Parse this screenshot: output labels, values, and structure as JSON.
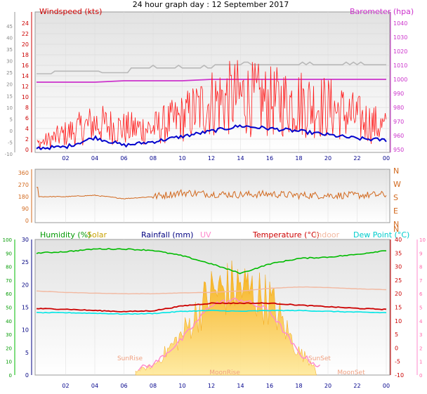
{
  "title": "24 hour graph day : 12 September 2017",
  "colors": {
    "windspeed": "#ff1a1a",
    "wind_avg": "#0000cc",
    "gust": "#b8b8b8",
    "barometer": "#cc33cc",
    "direction": "#d2691e",
    "humidity": "#00bb00",
    "solar": "#f5b800",
    "rainfall": "#000080",
    "uv": "#ff88cc",
    "temperature": "#cc0000",
    "indoor": "#f2b8a0",
    "dewpoint": "#00e6e6"
  },
  "panel1": {
    "left_title": "Windspeed (kts)",
    "right_title": "Barometer (hpa)",
    "outer_left_ticks": [
      "45",
      "40",
      "35",
      "30",
      "25",
      "20",
      "15",
      "10",
      "5",
      "0",
      "-5",
      "-10"
    ],
    "left_ticks": [
      "24",
      "22",
      "20",
      "18",
      "16",
      "14",
      "12",
      "10",
      "8",
      "6",
      "4",
      "2",
      "0"
    ],
    "right_ticks": [
      "1040",
      "1030",
      "1020",
      "1010",
      "1000",
      "990",
      "980",
      "970",
      "960",
      "950"
    ]
  },
  "panel2": {
    "left_ticks": [
      "360",
      "270",
      "180",
      "90",
      "0"
    ],
    "right_ticks": [
      "N",
      "W",
      "S",
      "E",
      "N"
    ]
  },
  "panel3": {
    "legend": [
      {
        "key": "humidity",
        "label": "Humidity (%)"
      },
      {
        "key": "solar",
        "label": "Solar"
      },
      {
        "key": "rainfall",
        "label": "Rainfall (mm)"
      },
      {
        "key": "uv",
        "label": "UV"
      },
      {
        "key": "temperature",
        "label": "Temperature (°C)"
      },
      {
        "key": "indoor",
        "label": "Indoor"
      },
      {
        "key": "dewpoint",
        "label": "Dew Point (°C)"
      }
    ],
    "outer_left_ticks": [
      "100",
      "90",
      "80",
      "70",
      "60",
      "50",
      "40",
      "30",
      "20",
      "10",
      "0"
    ],
    "left_ticks": [
      "30",
      "25",
      "20",
      "15",
      "10",
      "5",
      "0"
    ],
    "right_ticks": [
      "40",
      "35",
      "30",
      "25",
      "20",
      "15",
      "10",
      "5",
      "0",
      "-5",
      "-10"
    ],
    "outer_right_ticks": [
      "10",
      "9",
      "8",
      "7",
      "6",
      "5",
      "4",
      "3",
      "2",
      "1",
      "0"
    ],
    "events": [
      {
        "label": "SunRise",
        "hour": 6.8
      },
      {
        "label": "MoonRise",
        "hour": 14.2
      },
      {
        "label": "SunSet",
        "hour": 19.4
      },
      {
        "label": "MoonSet",
        "hour": 15.1
      }
    ],
    "x_labels": [
      "02",
      "04",
      "06",
      "08",
      "10",
      "12",
      "Moon",
      "Set",
      "14",
      "16",
      "18",
      "SunSet",
      "20",
      "22",
      "00"
    ],
    "x_labels_overlay": [
      "SunRise",
      "SunSet",
      "MoonSet",
      "MoonSet"
    ]
  },
  "x_ticks": [
    "02",
    "04",
    "06",
    "08",
    "10",
    "12",
    "14",
    "16",
    "18",
    "20",
    "22",
    "00"
  ],
  "chart_data": [
    {
      "type": "line",
      "title": "Windspeed (kts)",
      "x": [
        0,
        2,
        4,
        6,
        8,
        10,
        12,
        14,
        16,
        18,
        20,
        22,
        24
      ],
      "series": [
        {
          "name": "Windspeed (kts)",
          "axis": "left",
          "values": [
            1,
            3,
            5,
            4,
            4,
            6,
            9,
            10,
            9,
            9,
            8,
            6,
            4
          ]
        },
        {
          "name": "Barometer (hpa)",
          "axis": "right",
          "values": [
            998,
            998,
            998,
            999,
            999,
            999,
            1000,
            1000,
            1000,
            1000,
            1000,
            1000,
            1000
          ]
        }
      ],
      "ylim_left": [
        0,
        24
      ],
      "ylim_right": [
        950,
        1040
      ]
    },
    {
      "type": "line",
      "x": [
        0,
        2,
        4,
        6,
        8,
        10,
        12,
        14,
        16,
        18,
        20,
        22,
        24
      ],
      "series": [
        {
          "values": [
            180,
            180,
            190,
            165,
            180,
            210,
            200,
            195,
            200,
            190,
            190,
            190,
            195
          ]
        }
      ],
      "ylim": [
        0,
        360
      ]
    },
    {
      "type": "line",
      "x": [
        0,
        2,
        4,
        6,
        8,
        10,
        12,
        14,
        16,
        18,
        20,
        22,
        24
      ],
      "series": [
        {
          "name": "Humidity (%)",
          "values": [
            90,
            91,
            93,
            93,
            92,
            88,
            82,
            75,
            82,
            86,
            87,
            89,
            92
          ]
        },
        {
          "name": "Temperature (°C)",
          "values": [
            14.5,
            14.3,
            13.8,
            13.4,
            13.7,
            15.5,
            16.5,
            16.5,
            16.5,
            15.8,
            15.2,
            14.6,
            14.2
          ]
        },
        {
          "name": "Indoor",
          "values": [
            21,
            20.5,
            20.2,
            20,
            20,
            20.3,
            20.5,
            21,
            22,
            22.5,
            22.3,
            21.8,
            21.5
          ]
        },
        {
          "name": "Dew Point (°C)",
          "values": [
            13,
            13,
            12.8,
            12.5,
            12.7,
            13.5,
            13.8,
            13.5,
            13.8,
            13.8,
            13.5,
            13.2,
            13
          ]
        },
        {
          "name": "Solar",
          "values": [
            0,
            0,
            0,
            0,
            80,
            350,
            720,
            770,
            650,
            200,
            0,
            0,
            0
          ]
        }
      ],
      "ylim_humidity": [
        0,
        100
      ],
      "ylim_rain": [
        0,
        30
      ],
      "ylim_temperature": [
        -10,
        40
      ]
    }
  ]
}
